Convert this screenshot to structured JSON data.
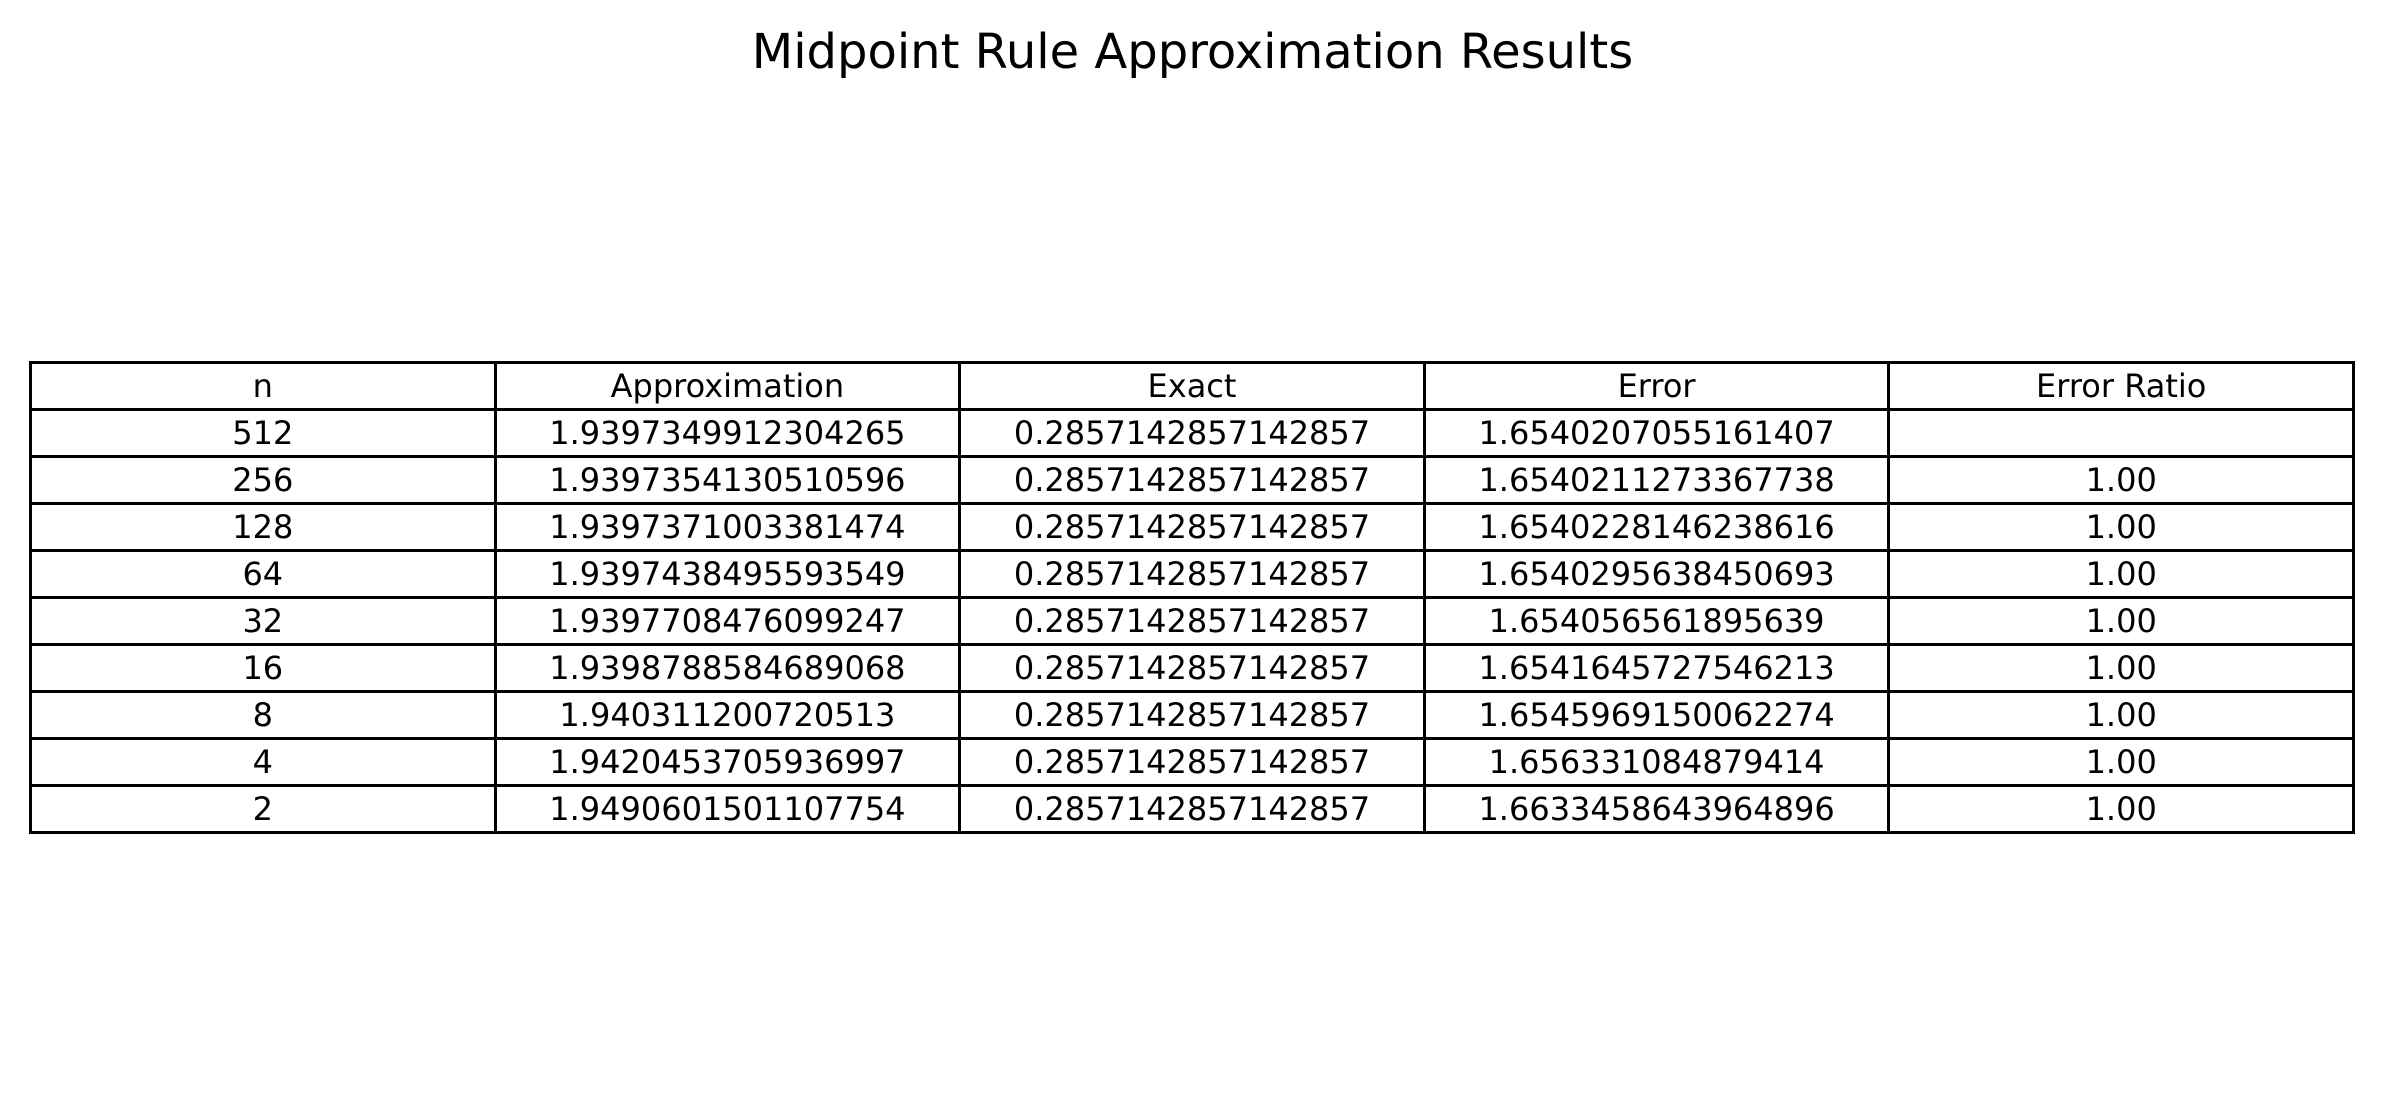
{
  "chart_data": {
    "type": "table",
    "title": "Midpoint Rule Approximation Results",
    "columns": [
      "n",
      "Approximation",
      "Exact",
      "Error",
      "Error Ratio"
    ],
    "rows": [
      [
        "512",
        "1.9397349912304265",
        "0.2857142857142857",
        "1.6540207055161407",
        ""
      ],
      [
        "256",
        "1.9397354130510596",
        "0.2857142857142857",
        "1.6540211273367738",
        "1.00"
      ],
      [
        "128",
        "1.9397371003381474",
        "0.2857142857142857",
        "1.6540228146238616",
        "1.00"
      ],
      [
        "64",
        "1.9397438495593549",
        "0.2857142857142857",
        "1.6540295638450693",
        "1.00"
      ],
      [
        "32",
        "1.9397708476099247",
        "0.2857142857142857",
        "1.654056561895639",
        "1.00"
      ],
      [
        "16",
        "1.9398788584689068",
        "0.2857142857142857",
        "1.6541645727546213",
        "1.00"
      ],
      [
        "8",
        "1.940311200720513",
        "0.2857142857142857",
        "1.6545969150062274",
        "1.00"
      ],
      [
        "4",
        "1.9420453705936997",
        "0.2857142857142857",
        "1.656331084879414",
        "1.00"
      ],
      [
        "2",
        "1.9490601501107754",
        "0.2857142857142857",
        "1.6633458643964896",
        "1.00"
      ]
    ]
  }
}
